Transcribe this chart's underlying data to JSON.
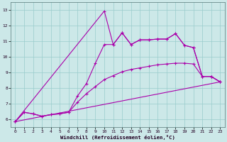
{
  "xlabel": "Windchill (Refroidissement éolien,°C)",
  "background_color": "#cce8e8",
  "grid_color": "#99cccc",
  "line_color": "#aa00aa",
  "xlim": [
    -0.5,
    23.5
  ],
  "ylim": [
    5.5,
    13.5
  ],
  "xticks": [
    0,
    1,
    2,
    3,
    4,
    5,
    6,
    7,
    8,
    9,
    10,
    11,
    12,
    13,
    14,
    15,
    16,
    17,
    18,
    19,
    20,
    21,
    22,
    23
  ],
  "yticks": [
    6,
    7,
    8,
    9,
    10,
    11,
    12,
    13
  ],
  "series_spike": [
    [
      0,
      5.85
    ],
    [
      10,
      12.95
    ],
    [
      11,
      10.8
    ],
    [
      12,
      11.55
    ],
    [
      13,
      10.8
    ],
    [
      14,
      11.1
    ],
    [
      15,
      11.1
    ],
    [
      16,
      11.15
    ],
    [
      17,
      11.15
    ],
    [
      18,
      11.5
    ],
    [
      19,
      10.75
    ],
    [
      20,
      10.6
    ],
    [
      21,
      8.75
    ],
    [
      22,
      8.75
    ],
    [
      23,
      8.4
    ]
  ],
  "series_mid": [
    [
      0,
      5.85
    ],
    [
      1,
      6.45
    ],
    [
      2,
      6.35
    ],
    [
      3,
      6.2
    ],
    [
      4,
      6.3
    ],
    [
      5,
      6.35
    ],
    [
      6,
      6.45
    ],
    [
      7,
      7.5
    ],
    [
      8,
      8.3
    ],
    [
      9,
      9.6
    ],
    [
      10,
      10.8
    ],
    [
      11,
      10.8
    ],
    [
      12,
      11.55
    ],
    [
      13,
      10.8
    ],
    [
      14,
      11.1
    ],
    [
      15,
      11.1
    ],
    [
      16,
      11.15
    ],
    [
      17,
      11.15
    ],
    [
      18,
      11.5
    ],
    [
      19,
      10.75
    ],
    [
      20,
      10.6
    ],
    [
      21,
      8.75
    ],
    [
      22,
      8.75
    ],
    [
      23,
      8.4
    ]
  ],
  "series_smooth": [
    [
      0,
      5.85
    ],
    [
      1,
      6.45
    ],
    [
      2,
      6.35
    ],
    [
      3,
      6.2
    ],
    [
      4,
      6.3
    ],
    [
      5,
      6.35
    ],
    [
      6,
      6.45
    ],
    [
      7,
      7.1
    ],
    [
      8,
      7.65
    ],
    [
      9,
      8.1
    ],
    [
      10,
      8.55
    ],
    [
      11,
      8.8
    ],
    [
      12,
      9.05
    ],
    [
      13,
      9.2
    ],
    [
      14,
      9.3
    ],
    [
      15,
      9.4
    ],
    [
      16,
      9.5
    ],
    [
      17,
      9.55
    ],
    [
      18,
      9.6
    ],
    [
      19,
      9.6
    ],
    [
      20,
      9.55
    ],
    [
      21,
      8.75
    ],
    [
      22,
      8.75
    ],
    [
      23,
      8.4
    ]
  ],
  "series_line": [
    [
      0,
      5.85
    ],
    [
      23,
      8.4
    ]
  ]
}
